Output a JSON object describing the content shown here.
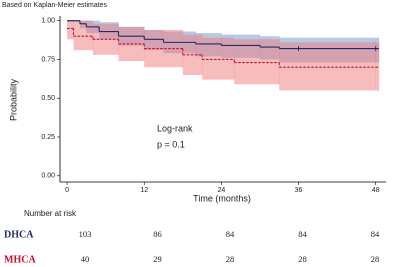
{
  "chart_data": {
    "type": "km",
    "title": "Based on Kaplan-Meier estimates",
    "x_label": "Time (months)",
    "y_label": "Probability",
    "annotations": [
      "Log-rank",
      "p = 0.1"
    ],
    "xlim": [
      -1.1,
      49.6
    ],
    "xticks": [
      0,
      12,
      24,
      36,
      48
    ],
    "ylim": [
      -0.04,
      1.03
    ],
    "yticks": [
      {
        "value": 0,
        "label": "0.00"
      },
      {
        "value": 0.25,
        "label": "0.25"
      },
      {
        "value": 0.5,
        "label": "0.50"
      },
      {
        "value": 0.75,
        "label": "0.75"
      },
      {
        "value": 1,
        "label": "1.00"
      }
    ],
    "grid": false,
    "risk_title": "Number at risk",
    "series": [
      {
        "name": "DHCA",
        "color": "#1f2a68",
        "band_color": "#6f93cc",
        "x": [
          0,
          2,
          3,
          5,
          8,
          12,
          15,
          20,
          24,
          30,
          33,
          48
        ],
        "values": [
          1.0,
          0.98,
          0.96,
          0.93,
          0.9,
          0.88,
          0.86,
          0.85,
          0.84,
          0.83,
          0.82,
          0.82
        ],
        "lower": [
          0.99,
          0.95,
          0.92,
          0.88,
          0.84,
          0.81,
          0.79,
          0.77,
          0.76,
          0.75,
          0.73,
          0.73
        ],
        "upper": [
          1.0,
          1.0,
          1.0,
          0.99,
          0.96,
          0.94,
          0.93,
          0.92,
          0.91,
          0.9,
          0.89,
          0.89
        ],
        "censor_x": [
          36,
          48
        ],
        "censor_values": [
          0.82,
          0.82
        ],
        "at_risk": [
          103,
          86,
          84,
          84,
          84
        ]
      },
      {
        "name": "MHCA",
        "color": "#c8102e",
        "band_color": "#f07a7a",
        "x": [
          0,
          1,
          4,
          8,
          12,
          18,
          21,
          26,
          33,
          48
        ],
        "values": [
          0.95,
          0.9,
          0.88,
          0.85,
          0.82,
          0.78,
          0.75,
          0.73,
          0.7,
          0.7
        ],
        "lower": [
          0.88,
          0.81,
          0.78,
          0.74,
          0.7,
          0.65,
          0.62,
          0.59,
          0.55,
          0.55
        ],
        "upper": [
          1.0,
          1.0,
          0.98,
          0.96,
          0.94,
          0.91,
          0.89,
          0.88,
          0.86,
          0.86
        ],
        "at_risk": [
          40,
          29,
          28,
          28,
          28
        ]
      }
    ]
  }
}
